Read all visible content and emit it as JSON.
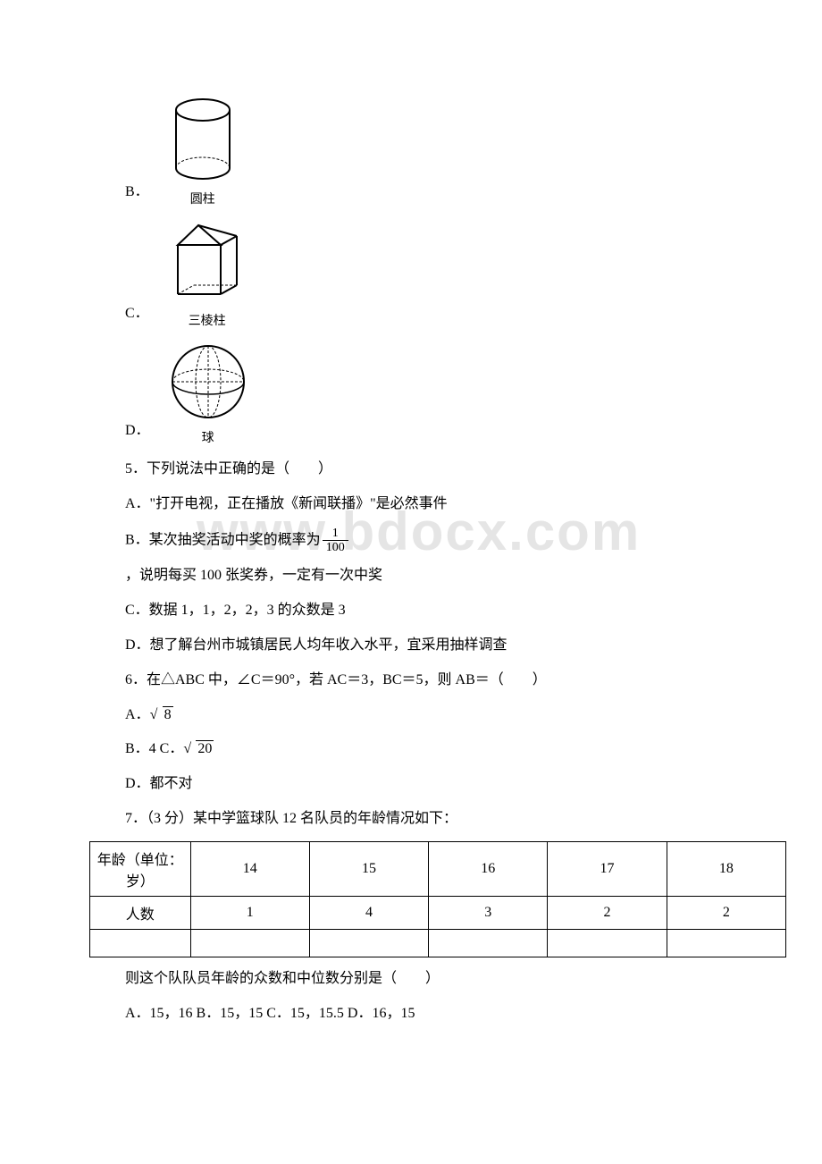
{
  "watermark": "www.bdocx.com",
  "shapes": {
    "B": {
      "label": "B．",
      "caption": "圆柱"
    },
    "C": {
      "label": "C．",
      "caption": "三棱柱"
    },
    "D": {
      "label": "D．",
      "caption": "球"
    }
  },
  "q5": {
    "stem": "5．下列说法中正确的是（　　）",
    "A": "A．\"打开电视，正在播放《新闻联播》\"是必然事件",
    "B_pre": "B．某次抽奖活动中奖的概率为",
    "B_frac_num": "1",
    "B_frac_den": "100",
    "B_post": "，说明每买 100 张奖券，一定有一次中奖",
    "C": "C．数据 1，1，2，2，3 的众数是 3",
    "D": "D．想了解台州市城镇居民人均年收入水平，宜采用抽样调查"
  },
  "q6": {
    "stem": "6．在△ABC 中，∠C＝90°，若 AC＝3，BC＝5，则 AB＝（　　）",
    "A_pre": "A．",
    "A_rad": "8",
    "BC_pre": " B．4 C．",
    "BC_rad": "20",
    "D": "D．都不对"
  },
  "q7": {
    "stem": "7．（3 分）某中学篮球队 12 名队员的年龄情况如下：",
    "table": {
      "header": [
        "年龄（单位：岁）",
        "14",
        "15",
        "16",
        "17",
        "18"
      ],
      "row2": [
        "人数",
        "1",
        "4",
        "3",
        "2",
        "2"
      ],
      "col_widths": [
        "110px",
        "134px",
        "134px",
        "134px",
        "134px",
        "134px"
      ]
    },
    "after": "则这个队队员年龄的众数和中位数分别是（　　）",
    "opts": "A．15，16 B．15，15 C．15，15.5 D．16，15"
  }
}
